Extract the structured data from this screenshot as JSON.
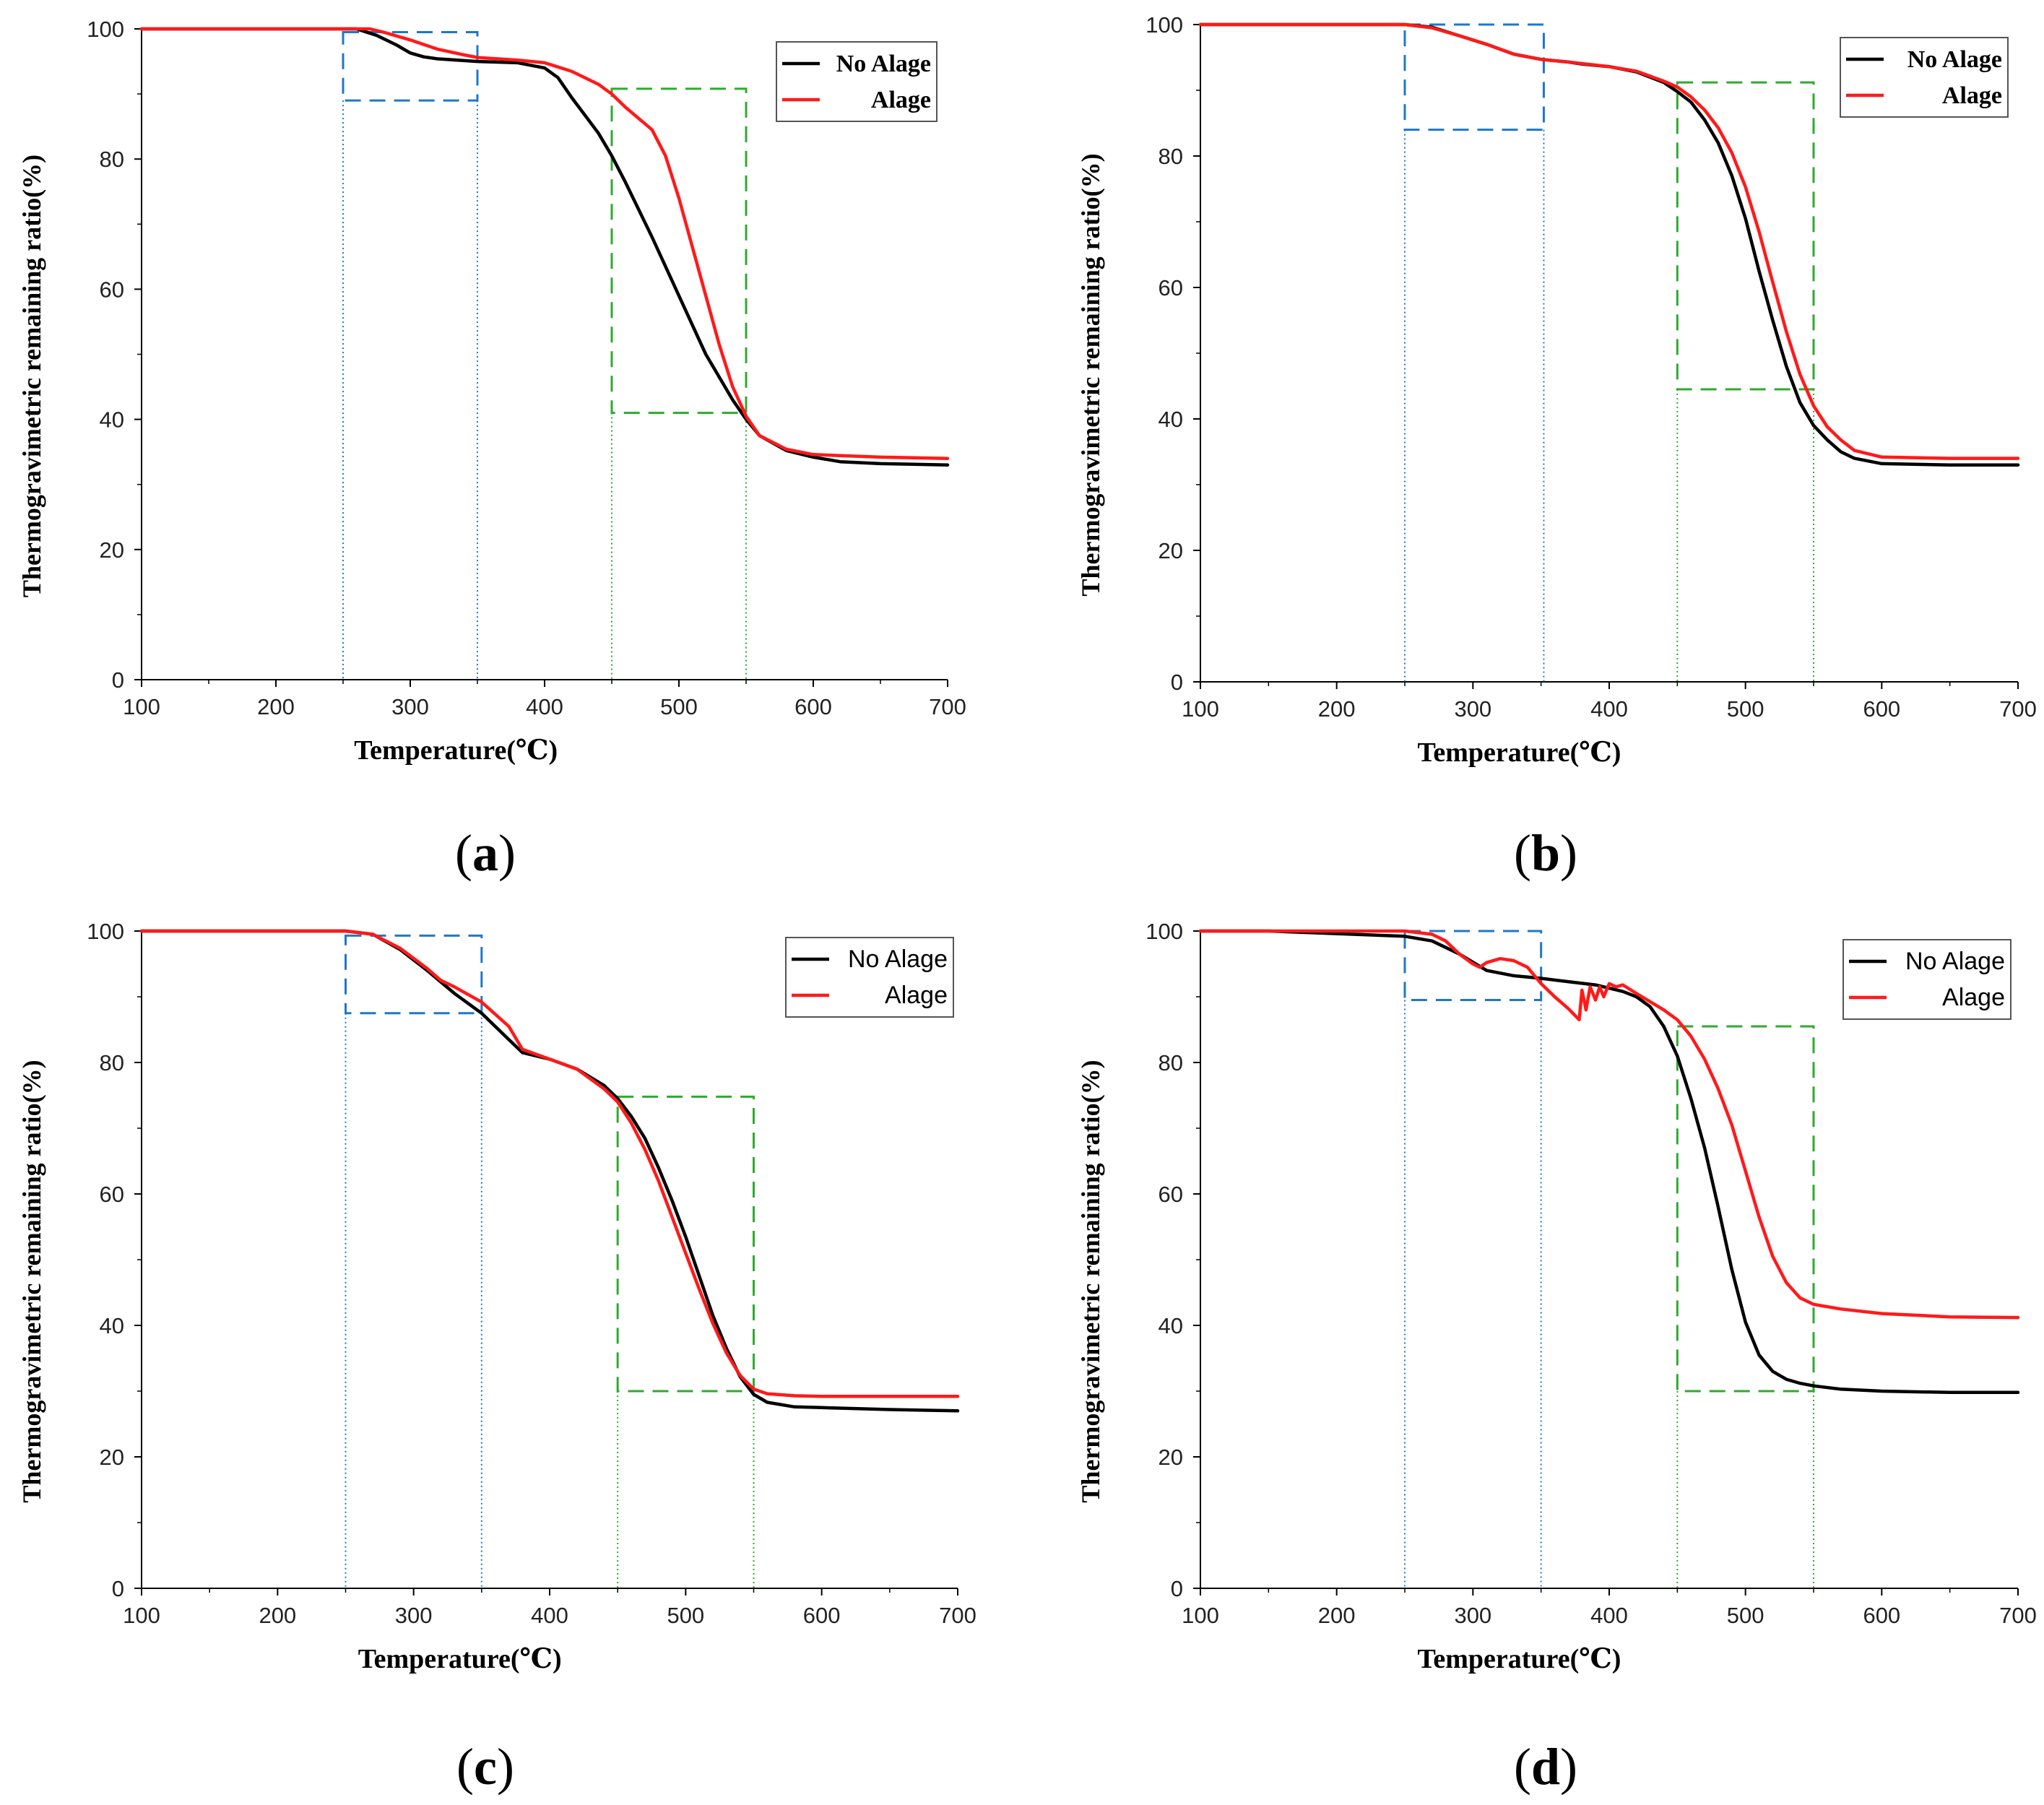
{
  "figure": {
    "colors": {
      "no_alage": "#000000",
      "alage": "#ff1a1a",
      "blue_box": "#1f77c8",
      "green_box": "#2faa2f"
    }
  },
  "chart_data": [
    {
      "type": "line",
      "panel_label": "a",
      "xlabel": "Temperature(℃)",
      "ylabel": "Thermogravimetric remaining ratio(%)",
      "xlim": [
        100,
        700
      ],
      "ylim": [
        0,
        100
      ],
      "xticks": [
        "100",
        "200",
        "300",
        "400",
        "500",
        "600",
        "700"
      ],
      "yticks": [
        "0",
        "20",
        "40",
        "60",
        "80",
        "100"
      ],
      "legend_position": "top-right",
      "legend_bold": true,
      "series": [
        {
          "name": "No Alage",
          "color": "#000000",
          "x": [
            100,
            250,
            260,
            275,
            290,
            300,
            310,
            320,
            350,
            380,
            400,
            410,
            420,
            440,
            450,
            460,
            480,
            500,
            520,
            540,
            550,
            560,
            580,
            600,
            620,
            650,
            700
          ],
          "y": [
            100,
            100,
            100,
            99,
            97.5,
            96.3,
            95.7,
            95.4,
            95,
            94.8,
            94,
            92.5,
            89.5,
            84,
            80.5,
            76.5,
            68,
            59,
            50,
            43,
            40,
            37.5,
            35.2,
            34.2,
            33.5,
            33.2,
            33
          ]
        },
        {
          "name": "Alage",
          "color": "#ff1a1a",
          "x": [
            100,
            250,
            270,
            280,
            300,
            320,
            340,
            350,
            380,
            400,
            420,
            440,
            450,
            460,
            480,
            490,
            500,
            510,
            520,
            530,
            540,
            550,
            560,
            580,
            600,
            650,
            700
          ],
          "y": [
            100,
            100,
            100,
            99.5,
            98.3,
            96.9,
            96,
            95.6,
            95.2,
            94.8,
            93.5,
            91.5,
            90,
            88,
            84.5,
            80.5,
            74,
            66.5,
            59,
            51.5,
            45,
            40.5,
            37.5,
            35.4,
            34.6,
            34.2,
            34
          ]
        }
      ],
      "regions": [
        {
          "color": "#1f77c8",
          "x": [
            250,
            350
          ],
          "y": [
            89,
            99.5
          ]
        },
        {
          "color": "#2faa2f",
          "x": [
            450,
            550
          ],
          "y": [
            41,
            90.8
          ]
        }
      ]
    },
    {
      "type": "line",
      "panel_label": "b",
      "xlabel": "Temperature(℃)",
      "ylabel": "Thermogravimetric remaining ratio(%)",
      "xlim": [
        100,
        700
      ],
      "ylim": [
        0,
        100
      ],
      "xticks": [
        "100",
        "200",
        "300",
        "400",
        "500",
        "600",
        "700"
      ],
      "yticks": [
        "0",
        "20",
        "40",
        "60",
        "80",
        "100"
      ],
      "legend_position": "top-right",
      "legend_bold": true,
      "series": [
        {
          "name": "No Alage",
          "color": "#000000",
          "x": [
            100,
            250,
            270,
            290,
            310,
            330,
            350,
            370,
            380,
            400,
            420,
            440,
            450,
            460,
            470,
            480,
            490,
            500,
            510,
            520,
            530,
            540,
            550,
            560,
            570,
            580,
            600,
            650,
            700
          ],
          "y": [
            100,
            100,
            99.6,
            98.3,
            97,
            95.5,
            94.7,
            94.3,
            94,
            93.6,
            92.8,
            91.2,
            89.8,
            88.2,
            85.5,
            82,
            77,
            70.5,
            62.5,
            55,
            48,
            42.5,
            39,
            36.8,
            35,
            34,
            33.2,
            33,
            33
          ]
        },
        {
          "name": "Alage",
          "color": "#ff1a1a",
          "x": [
            100,
            250,
            270,
            290,
            310,
            330,
            350,
            370,
            400,
            420,
            440,
            450,
            460,
            470,
            480,
            490,
            500,
            510,
            520,
            530,
            540,
            550,
            560,
            570,
            580,
            600,
            650,
            700
          ],
          "y": [
            100,
            100,
            99.5,
            98.3,
            97,
            95.5,
            94.7,
            94.3,
            93.6,
            92.9,
            91.4,
            90.5,
            89,
            87,
            84.3,
            80.5,
            75.3,
            68.5,
            60.8,
            53.3,
            46.8,
            42,
            38.8,
            36.8,
            35.2,
            34.2,
            34,
            34
          ]
        }
      ],
      "regions": [
        {
          "color": "#1f77c8",
          "x": [
            250,
            352
          ],
          "y": [
            84,
            100
          ]
        },
        {
          "color": "#2faa2f",
          "x": [
            450,
            550
          ],
          "y": [
            44.5,
            91.2
          ]
        }
      ]
    },
    {
      "type": "line",
      "panel_label": "c",
      "xlabel": "Temperature(℃)",
      "ylabel": "Thermogravimetric remaining ratio(%)",
      "xlim": [
        100,
        700
      ],
      "ylim": [
        0,
        100
      ],
      "xticks": [
        "100",
        "200",
        "300",
        "400",
        "500",
        "600",
        "700"
      ],
      "yticks": [
        "0",
        "20",
        "40",
        "60",
        "80",
        "100"
      ],
      "legend_position": "top-right",
      "legend_bold": false,
      "series": [
        {
          "name": "No Alage",
          "color": "#000000",
          "x": [
            100,
            250,
            270,
            290,
            310,
            330,
            350,
            370,
            380,
            400,
            420,
            440,
            450,
            460,
            470,
            480,
            490,
            500,
            510,
            520,
            530,
            540,
            550,
            560,
            580,
            600,
            650,
            700
          ],
          "y": [
            100,
            100,
            99.5,
            97.2,
            94,
            90.5,
            87.5,
            83.5,
            81.5,
            80.5,
            79,
            76.5,
            74.5,
            71.8,
            68.5,
            64,
            59,
            53.5,
            47.5,
            41.5,
            36.5,
            32.2,
            29.5,
            28.3,
            27.6,
            27.5,
            27.2,
            27
          ]
        },
        {
          "name": "Alage",
          "color": "#ff1a1a",
          "x": [
            100,
            250,
            270,
            290,
            310,
            320,
            330,
            350,
            370,
            380,
            400,
            420,
            440,
            450,
            460,
            470,
            480,
            490,
            500,
            510,
            520,
            530,
            540,
            550,
            560,
            580,
            600,
            700
          ],
          "y": [
            100,
            100,
            99.5,
            97.4,
            94.3,
            92.5,
            91.5,
            89.2,
            85.5,
            82,
            80.5,
            79,
            76,
            74,
            70.8,
            66.8,
            62,
            56.5,
            51,
            45.5,
            40.3,
            35.8,
            32.4,
            30.3,
            29.6,
            29.3,
            29.2,
            29.2
          ]
        }
      ],
      "regions": [
        {
          "color": "#1f77c8",
          "x": [
            250,
            350
          ],
          "y": [
            87.5,
            99.3
          ]
        },
        {
          "color": "#2faa2f",
          "x": [
            450,
            550
          ],
          "y": [
            30,
            74.8
          ]
        }
      ]
    },
    {
      "type": "line",
      "panel_label": "d",
      "xlabel": "Temperature(℃)",
      "ylabel": "Thermogravimetric remaining ratio(%)",
      "xlim": [
        100,
        700
      ],
      "ylim": [
        0,
        100
      ],
      "xticks": [
        "100",
        "200",
        "300",
        "400",
        "500",
        "600",
        "700"
      ],
      "yticks": [
        "0",
        "20",
        "40",
        "60",
        "80",
        "100"
      ],
      "legend_position": "top-right",
      "legend_bold": false,
      "series": [
        {
          "name": "No Alage",
          "color": "#000000",
          "x": [
            100,
            150,
            200,
            250,
            270,
            290,
            310,
            330,
            350,
            370,
            390,
            410,
            420,
            430,
            440,
            450,
            460,
            470,
            480,
            490,
            500,
            510,
            520,
            530,
            540,
            550,
            570,
            600,
            650,
            700
          ],
          "y": [
            100,
            100,
            99.6,
            99.2,
            98.5,
            96.5,
            94,
            93.2,
            92.8,
            92.3,
            91.8,
            90.8,
            90,
            88.5,
            85.5,
            81,
            74.5,
            67,
            58,
            48.5,
            40.5,
            35.5,
            33,
            31.8,
            31.2,
            30.8,
            30.3,
            30,
            29.8,
            29.8
          ]
        },
        {
          "name": "Alage",
          "color": "#ff1a1a",
          "x": [
            100,
            250,
            270,
            280,
            290,
            300,
            305,
            310,
            320,
            330,
            340,
            350,
            360,
            370,
            378,
            380,
            383,
            386,
            390,
            393,
            396,
            400,
            405,
            410,
            420,
            440,
            450,
            460,
            470,
            480,
            490,
            500,
            510,
            520,
            530,
            540,
            550,
            570,
            600,
            650,
            700
          ],
          "y": [
            100,
            100,
            99.5,
            98.5,
            96.5,
            95,
            94.5,
            95.2,
            95.8,
            95.5,
            94.5,
            92,
            90,
            88.2,
            86.5,
            91,
            88,
            91.5,
            89.5,
            91.5,
            90,
            92,
            91.5,
            91.8,
            90.5,
            88,
            86.5,
            84,
            80.5,
            76,
            70.5,
            63.5,
            56.5,
            50.5,
            46.5,
            44.2,
            43.2,
            42.5,
            41.8,
            41.3,
            41.2
          ]
        }
      ],
      "regions": [
        {
          "color": "#1f77c8",
          "x": [
            250,
            350
          ],
          "y": [
            89.5,
            100
          ]
        },
        {
          "color": "#2faa2f",
          "x": [
            450,
            550
          ],
          "y": [
            30,
            85.5
          ]
        }
      ]
    }
  ]
}
